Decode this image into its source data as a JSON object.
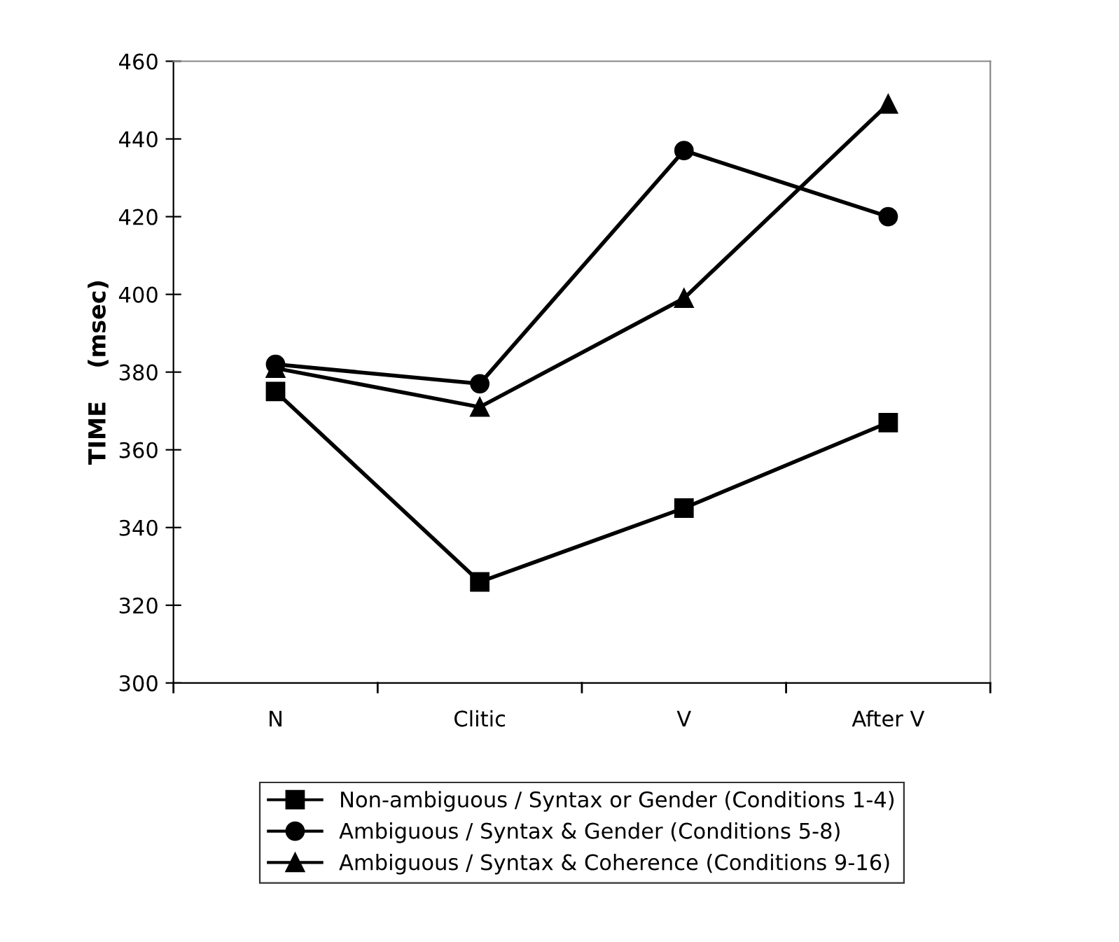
{
  "chart_data": {
    "type": "line",
    "ylabel": "TIME    (msec)",
    "categories": [
      "N",
      "Clitic",
      "V",
      "After V"
    ],
    "series": [
      {
        "name": "Non-ambiguous / Syntax or Gender (Conditions 1-4)",
        "color": "#000000",
        "marker": "square",
        "values": [
          375,
          326,
          345,
          367
        ]
      },
      {
        "name": "Ambiguous / Syntax & Gender (Conditions 5-8)",
        "color": "#000000",
        "marker": "circle",
        "values": [
          382,
          377,
          437,
          420
        ]
      },
      {
        "name": "Ambiguous / Syntax & Coherence (Conditions 9-16)",
        "color": "#000000",
        "marker": "triangle",
        "values": [
          381,
          371,
          399,
          449
        ]
      }
    ],
    "ylim": [
      300,
      460
    ],
    "yticks": [
      300,
      320,
      340,
      360,
      380,
      400,
      420,
      440,
      460
    ],
    "grid": false,
    "legend": "bottom",
    "line_style": "solid"
  }
}
